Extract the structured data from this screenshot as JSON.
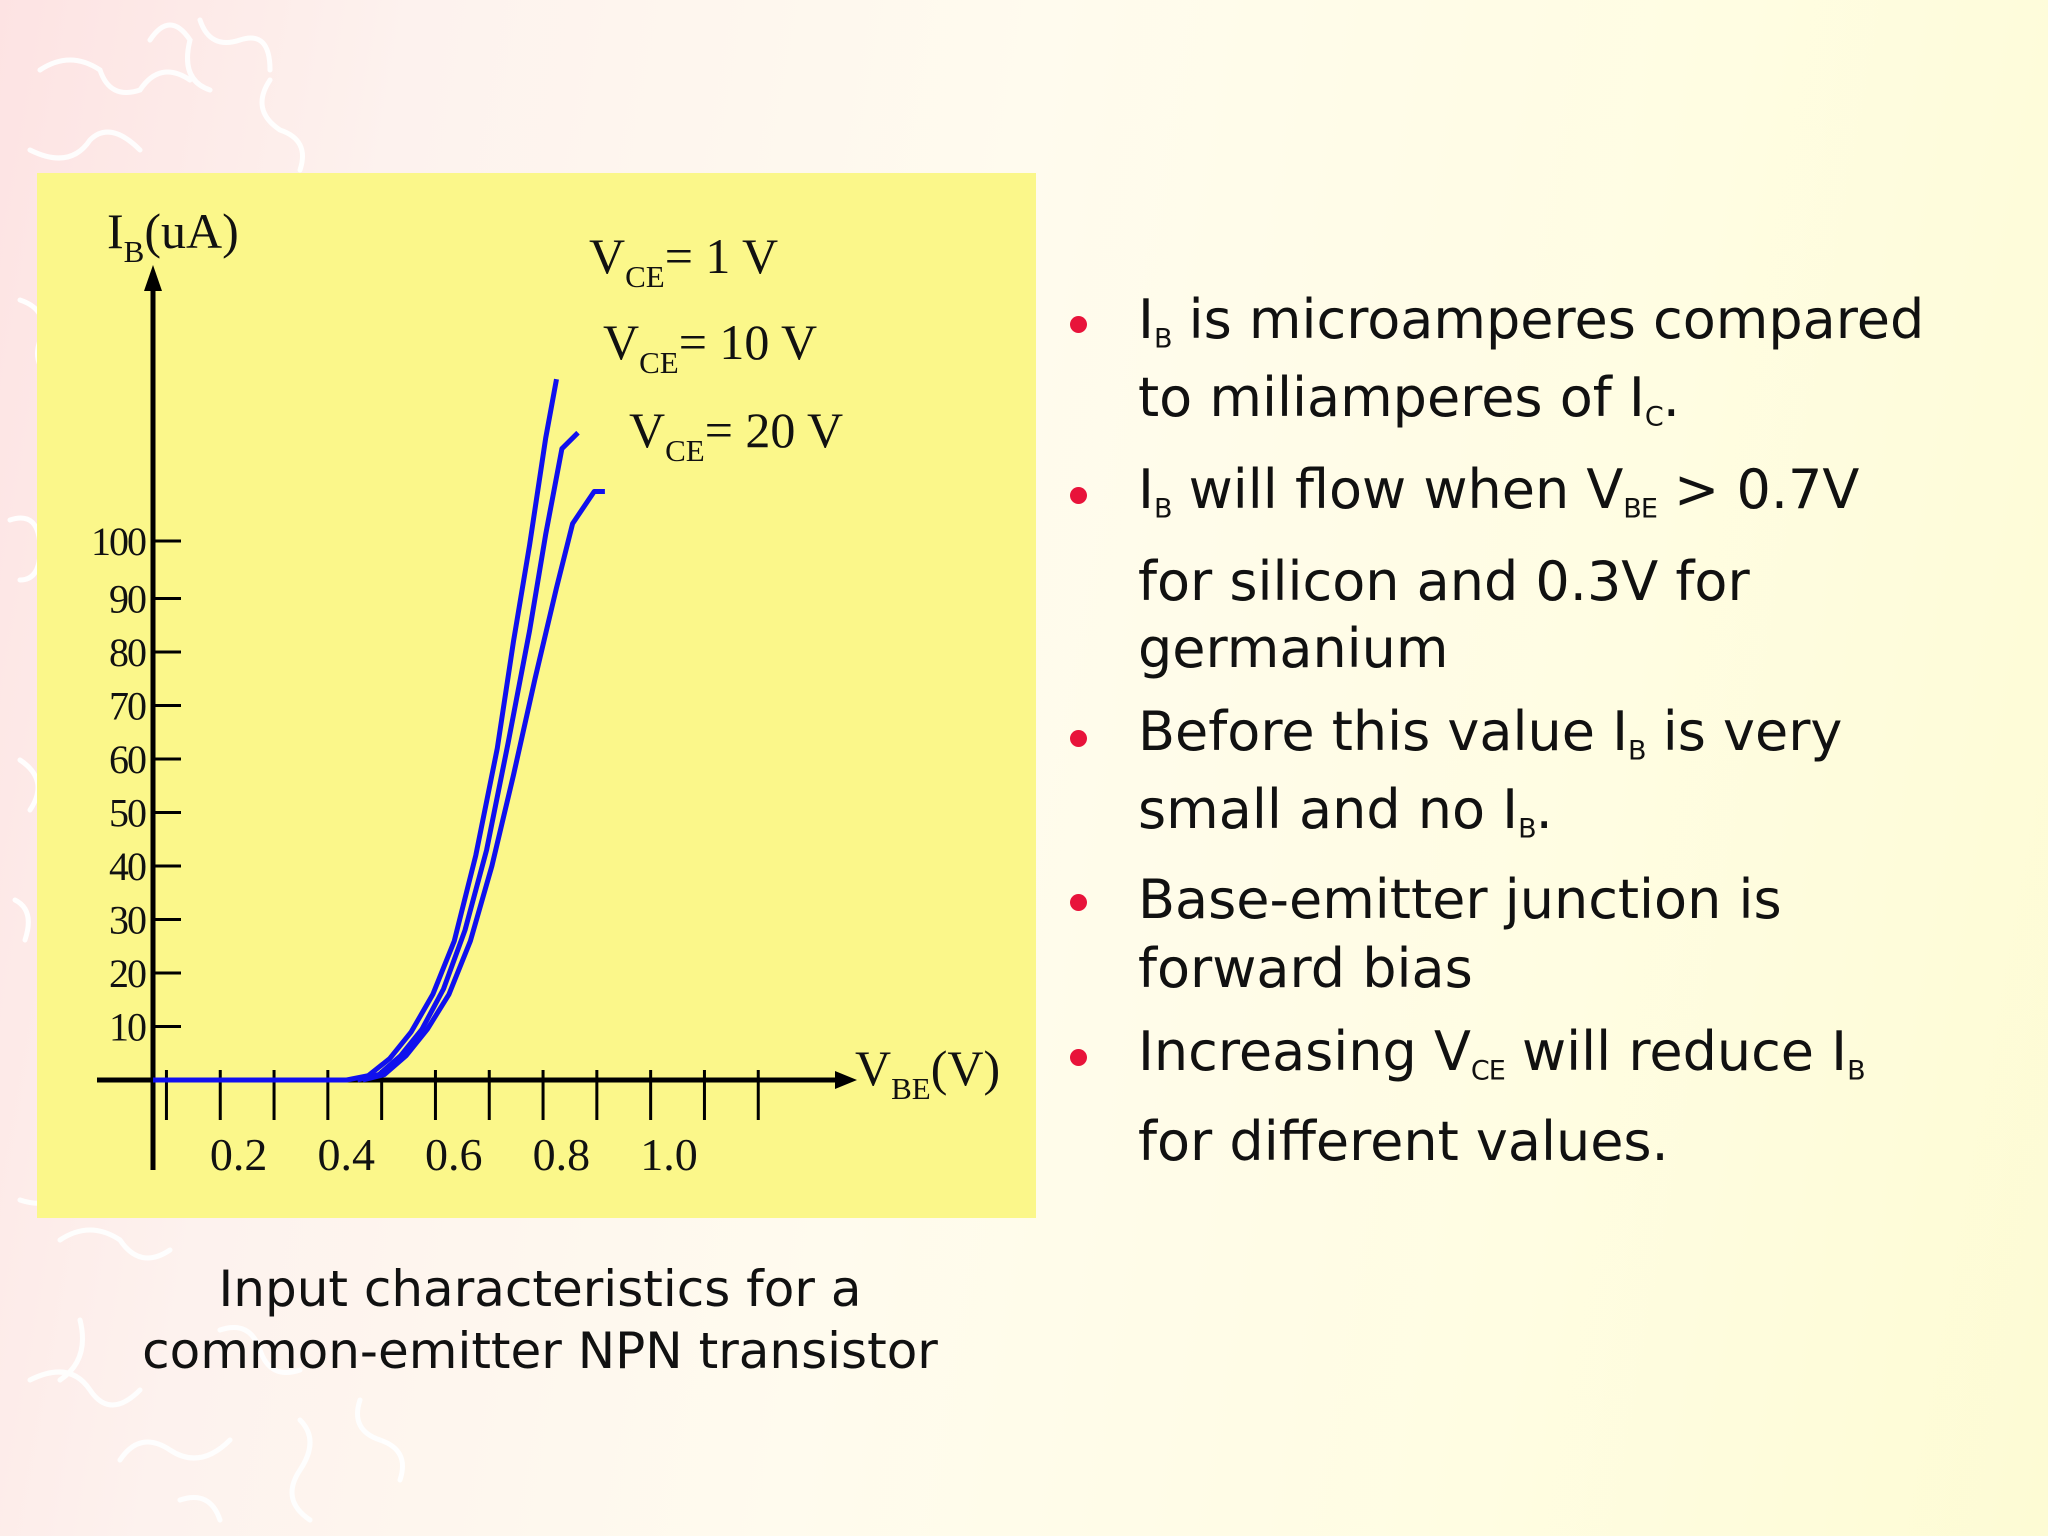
{
  "caption": {
    "line1": "Input characteristics for a",
    "line2": "common-emitter NPN transistor"
  },
  "bullets": [
    {
      "line1": [
        "I",
        "B",
        " is microamperes compared"
      ],
      "line2": [
        "to miliamperes of I",
        "C",
        "."
      ]
    },
    {
      "line1": [
        " I",
        "B",
        " will flow when V",
        "BE",
        " > 0.7V"
      ],
      "line2": "for silicon and 0.3V for",
      "line3": "germanium"
    },
    {
      "line1": [
        "Before this value I",
        "B",
        " is very"
      ],
      "line2": [
        "small and no I",
        "B",
        "."
      ]
    },
    {
      "line1": " Base-emitter junction is",
      "line2": "forward bias"
    },
    {
      "line1": [
        " Increasing V",
        "CE",
        " will reduce I",
        "B"
      ],
      "line2": " for different values."
    }
  ],
  "colors": {
    "bullet": "#e8133a",
    "curve": "#1010ee",
    "panel": "#fbf78a"
  },
  "chart_data": {
    "type": "line",
    "ylabel": {
      "main": "I",
      "sub": "B",
      "rest": "(uA)"
    },
    "xlabel": {
      "main": "V",
      "sub": "BE",
      "rest": "(V)"
    },
    "x_ticks": [
      "0.2",
      "0.4",
      "0.6",
      "0.8",
      "1.0"
    ],
    "x_tick_values": [
      0.2,
      0.4,
      0.6,
      0.8,
      1.0
    ],
    "y_ticks": [
      "10",
      "20",
      "30",
      "40",
      "50",
      "60",
      "70",
      "80",
      "90",
      "100"
    ],
    "y_tick_values": [
      10,
      20,
      30,
      40,
      50,
      60,
      70,
      80,
      90,
      100
    ],
    "series": [
      {
        "name": "VCE= 1 V",
        "label": {
          "main": "V",
          "sub": "CE",
          "rest": "= 1 V"
        },
        "points": [
          [
            0.0,
            0
          ],
          [
            0.36,
            0
          ],
          [
            0.4,
            0.8
          ],
          [
            0.44,
            4
          ],
          [
            0.48,
            9
          ],
          [
            0.52,
            16
          ],
          [
            0.56,
            26
          ],
          [
            0.6,
            42
          ],
          [
            0.64,
            62
          ],
          [
            0.67,
            82
          ],
          [
            0.7,
            100
          ],
          [
            0.73,
            120
          ],
          [
            0.75,
            131
          ]
        ]
      },
      {
        "name": "VCE= 10 V",
        "label": {
          "main": "V",
          "sub": "CE",
          "rest": "= 10 V"
        },
        "points": [
          [
            0.38,
            0
          ],
          [
            0.42,
            1
          ],
          [
            0.46,
            4.5
          ],
          [
            0.5,
            9.5
          ],
          [
            0.54,
            17
          ],
          [
            0.58,
            28
          ],
          [
            0.62,
            43
          ],
          [
            0.66,
            63
          ],
          [
            0.7,
            84
          ],
          [
            0.73,
            102
          ],
          [
            0.76,
            118
          ],
          [
            0.79,
            121
          ]
        ]
      },
      {
        "name": "VCE= 20 V",
        "label": {
          "main": "V",
          "sub": "CE",
          "rest": "= 20 V"
        },
        "points": [
          [
            0.39,
            0
          ],
          [
            0.43,
            1
          ],
          [
            0.47,
            4.5
          ],
          [
            0.51,
            9.5
          ],
          [
            0.55,
            16
          ],
          [
            0.59,
            26
          ],
          [
            0.63,
            40
          ],
          [
            0.67,
            57
          ],
          [
            0.71,
            75
          ],
          [
            0.75,
            92
          ],
          [
            0.78,
            104
          ],
          [
            0.82,
            110
          ],
          [
            0.84,
            110
          ]
        ]
      }
    ]
  }
}
